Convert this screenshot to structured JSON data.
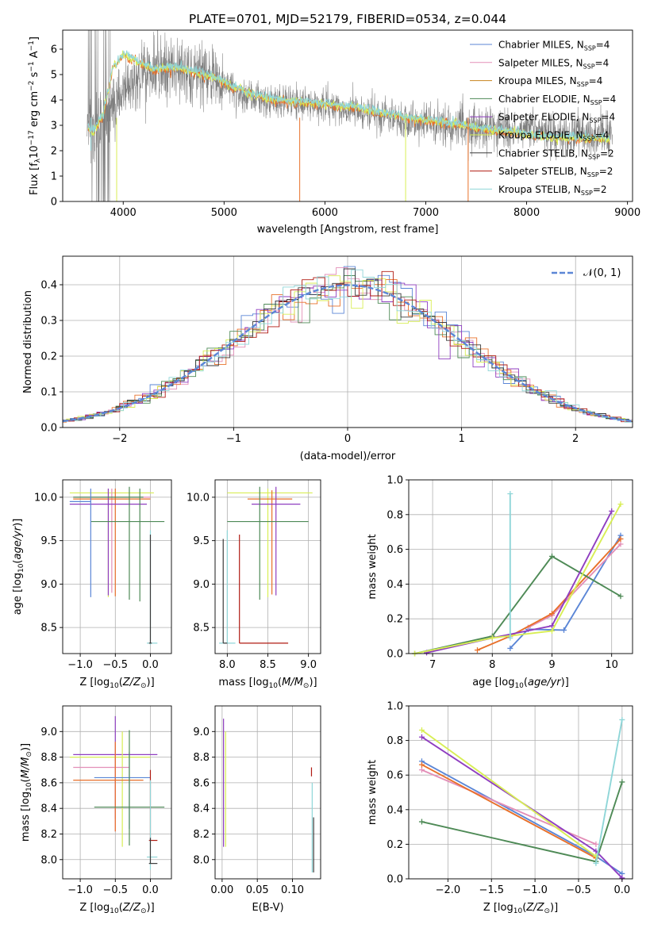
{
  "title": "PLATE=0701, MJD=52179, FIBERID=0534, z=0.044",
  "colors": {
    "Chabrier MILES": "#5b86d6",
    "Salpeter MILES": "#e38fb8",
    "Kroupa MILES": "#c7821b",
    "Chabrier ELODIE": "#4e8a56",
    "Salpeter ELODIE": "#8f3ec0",
    "Kroupa ELODIE": "#d8ee55",
    "Chabrier STELIB": "#3a3a3a",
    "Salpeter STELIB": "#b01b12",
    "Kroupa STELIB": "#8fd6d8",
    "orange_model": "#e8702a",
    "data": "#7f7f7f",
    "gaussian": "#5b86d6"
  },
  "chart_data": [
    {
      "id": "spectrum",
      "type": "line",
      "xlabel": "wavelength [Angstrom, rest frame]",
      "ylabel_main": "Flux [f",
      "ylabel_sub": "λ",
      "ylabel_mid": "10",
      "ylabel_sup1": "−17",
      "ylabel_tail": " erg cm",
      "ylabel_sup2": "−2",
      "ylabel_tail2": " s",
      "ylabel_sup3": "−1",
      "ylabel_tail3": " A",
      "ylabel_sup4": "−1",
      "ylabel_end": "]",
      "xlim": [
        3400,
        9050
      ],
      "ylim": [
        0,
        6.75
      ],
      "xticks": [
        4000,
        5000,
        6000,
        7000,
        8000,
        9000
      ],
      "yticks": [
        0,
        1,
        2,
        3,
        4,
        5,
        6
      ],
      "legend_position": "upper right",
      "legend": [
        {
          "label": "Chabrier MILES",
          "n": "4"
        },
        {
          "label": "Salpeter MILES",
          "n": "4"
        },
        {
          "label": "Kroupa MILES",
          "n": "4"
        },
        {
          "label": "Chabrier ELODIE",
          "n": "4"
        },
        {
          "label": "Salpeter ELODIE",
          "n": "4"
        },
        {
          "label": "Kroupa ELODIE",
          "n": "4"
        },
        {
          "label": "Chabrier STELIB",
          "n": "2"
        },
        {
          "label": "Salpeter STELIB",
          "n": "2"
        },
        {
          "label": "Kroupa STELIB",
          "n": "2"
        }
      ],
      "legend_nssp_prefix": "N",
      "legend_nssp_sub": "SSP",
      "data_envelope": {
        "x": [
          3650,
          3800,
          4000,
          4200,
          4500,
          4900,
          5200,
          5600,
          6000,
          6500,
          7000,
          7500,
          8000,
          8500,
          8850
        ],
        "y": [
          3.0,
          3.2,
          4.4,
          5.2,
          5.3,
          4.9,
          4.2,
          3.9,
          3.8,
          3.4,
          3.1,
          2.9,
          2.8,
          2.6,
          2.6
        ]
      },
      "model_envelope": {
        "x": [
          3650,
          3700,
          3800,
          3900,
          4000,
          4100,
          4300,
          4500,
          4700,
          4900,
          5100,
          5300,
          5500,
          5800,
          6000,
          6300,
          6600,
          7000,
          7300,
          7600,
          8000,
          8400,
          8800
        ],
        "y": [
          2.9,
          2.7,
          3.4,
          5.3,
          5.8,
          5.6,
          5.2,
          5.3,
          5.1,
          4.9,
          4.5,
          4.2,
          4.0,
          3.9,
          3.85,
          3.7,
          3.45,
          3.2,
          3.05,
          2.85,
          2.65,
          2.5,
          2.45
        ]
      }
    },
    {
      "id": "residuals",
      "type": "histogram",
      "xlabel": "(data-model)/error",
      "ylabel": "Normed distribution",
      "xlim": [
        -2.5,
        2.5
      ],
      "ylim": [
        0,
        0.48
      ],
      "xticks": [
        -2,
        -1,
        0,
        1,
        2
      ],
      "yticks": [
        0.0,
        0.1,
        0.2,
        0.3,
        0.4
      ],
      "legend_label": "𝒩(0, 1)",
      "legend_position": "upper right",
      "grid": true
    },
    {
      "id": "age_vs_Z",
      "type": "scatter",
      "xlabel": "Z [log",
      "xlabel_sub": "10",
      "xlabel_tail": "(Z/Z",
      "xlabel_sub2": "⊙",
      "xlabel_end": ")]",
      "ylabel": "age  [log10(age/yr)]",
      "xlim": [
        -1.25,
        0.3
      ],
      "ylim": [
        8.2,
        10.2
      ],
      "xticks": [
        -1.0,
        -0.5,
        0.0
      ],
      "yticks": [
        8.5,
        9.0,
        9.5,
        10.0
      ],
      "grid": true
    },
    {
      "id": "age_vs_mass",
      "type": "scatter",
      "xlabel": "mass [log10(M/M⊙)]",
      "xlim": [
        7.85,
        9.15
      ],
      "ylim": [
        8.2,
        10.2
      ],
      "xticks": [
        8.0,
        8.5,
        9.0
      ],
      "yticks": [
        8.5,
        9.0,
        9.5,
        10.0
      ],
      "grid": true
    },
    {
      "id": "weight_vs_age",
      "type": "line",
      "xlabel": "age  [log10(age/yr)]",
      "ylabel": "mass weight",
      "xlim": [
        6.6,
        10.35
      ],
      "ylim": [
        0,
        1
      ],
      "xticks": [
        7,
        8,
        9,
        10
      ],
      "yticks": [
        0.0,
        0.2,
        0.4,
        0.6,
        0.8,
        1.0
      ],
      "grid": true,
      "series": [
        {
          "name": "Chabrier MILES",
          "x": [
            8.3,
            8.6,
            9.2,
            10.15
          ],
          "y": [
            0.03,
            0.14,
            0.135,
            0.68
          ]
        },
        {
          "name": "Salpeter MILES",
          "x": [
            8.6,
            9.0,
            10.15
          ],
          "y": [
            0.15,
            0.22,
            0.63
          ]
        },
        {
          "name": "Kroupa MILES",
          "x": [
            7.75,
            8.3,
            9.0,
            10.15
          ],
          "y": [
            0.02,
            0.1,
            0.23,
            0.66
          ]
        },
        {
          "name": "Chabrier ELODIE",
          "x": [
            6.7,
            8.0,
            9.0,
            10.15
          ],
          "y": [
            0.0,
            0.1,
            0.56,
            0.33
          ]
        },
        {
          "name": "Salpeter ELODIE",
          "x": [
            6.9,
            8.0,
            9.0,
            10.0
          ],
          "y": [
            0.005,
            0.09,
            0.16,
            0.82
          ]
        },
        {
          "name": "Kroupa ELODIE",
          "x": [
            6.7,
            8.0,
            9.0,
            10.15
          ],
          "y": [
            0.0,
            0.09,
            0.13,
            0.86
          ]
        },
        {
          "name": "Kroupa STELIB",
          "x": [
            8.3,
            8.3
          ],
          "y": [
            0.09,
            0.92
          ]
        }
      ]
    },
    {
      "id": "mass_vs_Z",
      "type": "scatter",
      "xlabel": "Z [log10(Z/Z⊙)]",
      "ylabel": "mass [log10(M/M⊙)]",
      "xlim": [
        -1.25,
        0.3
      ],
      "ylim": [
        7.85,
        9.2
      ],
      "xticks": [
        -1.0,
        -0.5,
        0.0
      ],
      "yticks": [
        8.0,
        8.2,
        8.4,
        8.6,
        8.8,
        9.0
      ],
      "grid": true
    },
    {
      "id": "mass_vs_EBV",
      "type": "scatter",
      "xlabel": "E(B-V)",
      "xlim": [
        -0.01,
        0.14
      ],
      "ylim": [
        7.85,
        9.2
      ],
      "xticks": [
        0.0,
        0.05,
        0.1
      ],
      "xticklabels": [
        "0.00",
        "0.05",
        "0.10"
      ],
      "yticks": [
        8.0,
        8.2,
        8.4,
        8.6,
        8.8,
        9.0
      ],
      "grid": true
    },
    {
      "id": "weight_vs_Z",
      "type": "line",
      "xlabel": "Z [log10(Z/Z⊙)]",
      "ylabel": "mass weight",
      "xlim": [
        -2.45,
        0.12
      ],
      "ylim": [
        0,
        1
      ],
      "xticks": [
        -2.0,
        -1.5,
        -1.0,
        -0.5,
        0.0
      ],
      "yticks": [
        0.0,
        0.2,
        0.4,
        0.6,
        0.8,
        1.0
      ],
      "grid": true,
      "series": [
        {
          "name": "Chabrier MILES",
          "x": [
            -2.3,
            -0.3,
            0.0
          ],
          "y": [
            0.68,
            0.13,
            0.03
          ]
        },
        {
          "name": "Salpeter MILES",
          "x": [
            -2.3,
            -0.3
          ],
          "y": [
            0.63,
            0.2
          ]
        },
        {
          "name": "Kroupa MILES",
          "x": [
            -2.3,
            -0.3
          ],
          "y": [
            0.66,
            0.12
          ]
        },
        {
          "name": "Chabrier ELODIE",
          "x": [
            -2.3,
            -0.3,
            0.0
          ],
          "y": [
            0.33,
            0.1,
            0.56
          ]
        },
        {
          "name": "Salpeter ELODIE",
          "x": [
            -2.3,
            -0.3,
            0.0
          ],
          "y": [
            0.82,
            0.16,
            0.005
          ]
        },
        {
          "name": "Kroupa ELODIE",
          "x": [
            -2.3,
            -0.3
          ],
          "y": [
            0.86,
            0.13
          ]
        },
        {
          "name": "Kroupa STELIB",
          "x": [
            -0.3,
            0.0
          ],
          "y": [
            0.09,
            0.92
          ]
        }
      ]
    }
  ]
}
